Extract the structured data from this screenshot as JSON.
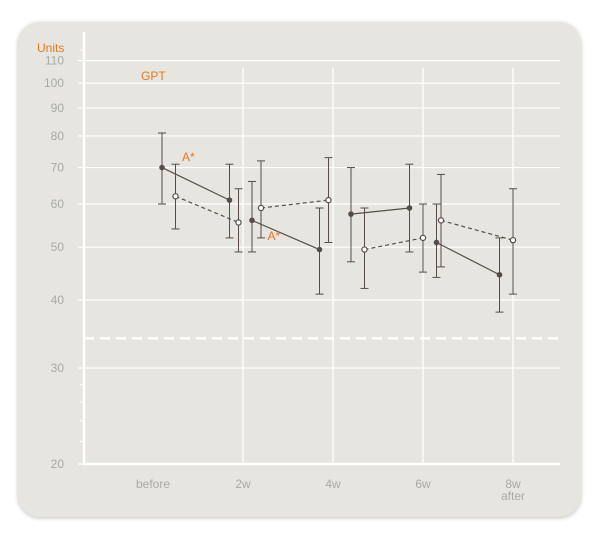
{
  "chart_data": {
    "type": "line",
    "title": "GPT",
    "ylabel": "Units",
    "y_scale": "log",
    "ylim": [
      20,
      120
    ],
    "yticks": [
      "20",
      "30",
      "40",
      "50",
      "60",
      "70",
      "80",
      "90",
      "100",
      "110"
    ],
    "categories": [
      "before",
      "2w",
      "4w",
      "6w",
      "8w after"
    ],
    "category_labels": [
      [
        "before"
      ],
      [
        "2w"
      ],
      [
        "4w"
      ],
      [
        "6w"
      ],
      [
        "8w",
        "after"
      ]
    ],
    "reference_line": {
      "y": 34,
      "style": "dashed",
      "color": "#ffffff"
    },
    "series": [
      {
        "style": "solid",
        "marker": "filled",
        "color": "#574c48",
        "segments": [
          [
            {
              "x": 0.1,
              "y": 70,
              "low": 60,
              "high": 81
            },
            {
              "x": 0.85,
              "y": 61,
              "low": 52,
              "high": 71
            }
          ],
          [
            {
              "x": 1.1,
              "y": 56,
              "low": 49,
              "high": 66
            },
            {
              "x": 1.85,
              "y": 49.5,
              "low": 41,
              "high": 59
            }
          ],
          [
            {
              "x": 2.2,
              "y": 57.5,
              "low": 47,
              "high": 70
            },
            {
              "x": 2.85,
              "y": 59,
              "low": 49,
              "high": 71
            }
          ],
          [
            {
              "x": 3.15,
              "y": 51,
              "low": 44,
              "high": 60
            },
            {
              "x": 3.85,
              "y": 44.5,
              "low": 38,
              "high": 52
            }
          ]
        ]
      },
      {
        "style": "dashed",
        "marker": "open",
        "color": "#574c48",
        "segments": [
          [
            {
              "x": 0.25,
              "y": 62,
              "low": 54,
              "high": 71
            },
            {
              "x": 0.95,
              "y": 55.5,
              "low": 49,
              "high": 64
            }
          ],
          [
            {
              "x": 1.2,
              "y": 59,
              "low": 52,
              "high": 72
            },
            {
              "x": 1.95,
              "y": 61,
              "low": 51,
              "high": 73
            }
          ],
          [
            {
              "x": 2.35,
              "y": 49.5,
              "low": 42,
              "high": 59
            },
            {
              "x": 3.0,
              "y": 52,
              "low": 45,
              "high": 60
            }
          ],
          [
            {
              "x": 3.2,
              "y": 56,
              "low": 46,
              "high": 68
            },
            {
              "x": 4.0,
              "y": 51.5,
              "low": 41,
              "high": 64
            }
          ]
        ]
      }
    ],
    "annotations": [
      {
        "text": "A*",
        "x": 0.3,
        "y": 72,
        "color": "#e8761e"
      },
      {
        "text": "A*",
        "x": 1.25,
        "y": 51.5,
        "color": "#e8761e"
      }
    ],
    "grid": true
  }
}
